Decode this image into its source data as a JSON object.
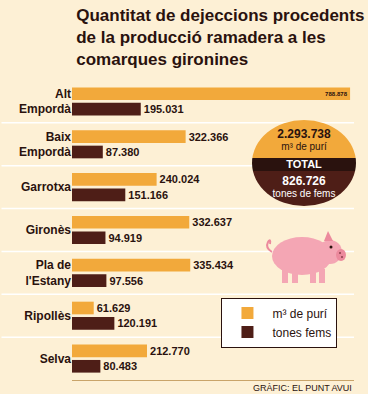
{
  "chart_data": {
    "type": "bar",
    "orientation": "horizontal",
    "title": "Quantitat de dejeccions procedents de la producció ramadera a les comarques gironines",
    "categories": [
      "Alt Empordà",
      "Baix Empordà",
      "Garrotxa",
      "Gironès",
      "Pla de l'Estany",
      "Ripollès",
      "Selva"
    ],
    "series": [
      {
        "name": "m³ de purí",
        "color": "#f2a93b",
        "values": [
          788878,
          322366,
          240024,
          332637,
          335434,
          61629,
          212770
        ],
        "value_labels": [
          "788.878",
          "322.366",
          "240.024",
          "332.637",
          "335.434",
          "61.629",
          "212.770"
        ]
      },
      {
        "name": "tones fems",
        "color": "#4e1e17",
        "values": [
          195031,
          87380,
          151166,
          94919,
          97556,
          120191,
          80483
        ],
        "value_labels": [
          "195.031",
          "87.380",
          "151.166",
          "94.919",
          "97.556",
          "120.191",
          "80.483"
        ]
      }
    ],
    "xlim": [
      0,
      800000
    ],
    "data_labels": true,
    "tick_labels": "y",
    "grid": false,
    "legend": "lower right",
    "totals": {
      "label": "TOTAL",
      "items": [
        {
          "value": 2293738,
          "value_label": "2.293.738",
          "unit": "m³ de purí"
        },
        {
          "value": 826726,
          "value_label": "826.726",
          "unit": "tones de fems"
        }
      ]
    },
    "source": "GRÀFIC: EL PUNT AVUI"
  }
}
